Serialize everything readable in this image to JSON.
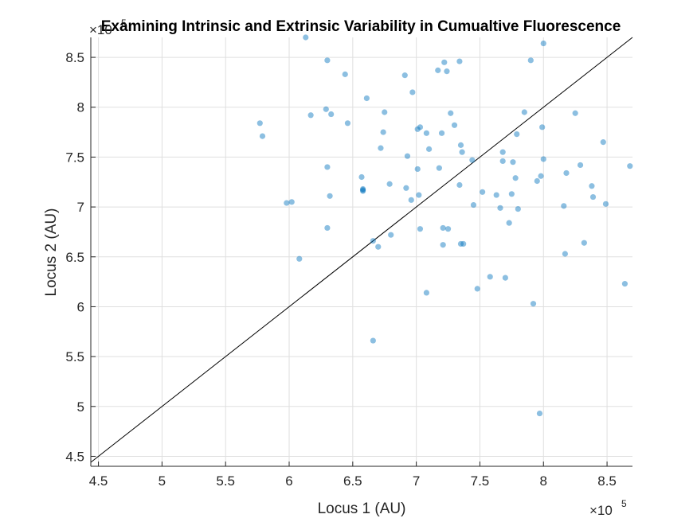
{
  "chart_data": {
    "type": "scatter",
    "title": "Examining Intrinsic and Extrinsic Variability in Cumualtive Fluorescence",
    "xlabel": "Locus 1 (AU)",
    "ylabel": "Locus 2 (AU)",
    "x_exponent_label": "×10",
    "x_exponent_power": "5",
    "y_exponent_label": "×10",
    "y_exponent_power": "5",
    "xlim": [
      4.44,
      8.7
    ],
    "ylim": [
      4.4,
      8.7
    ],
    "scale_factor": 100000,
    "x_ticks": [
      "4.5",
      "5",
      "5.5",
      "6",
      "6.5",
      "7",
      "7.5",
      "8",
      "8.5"
    ],
    "x_tick_values": [
      4.5,
      5,
      5.5,
      6,
      6.5,
      7,
      7.5,
      8,
      8.5
    ],
    "y_ticks": [
      "4.5",
      "5",
      "5.5",
      "6",
      "6.5",
      "7",
      "7.5",
      "8",
      "8.5"
    ],
    "y_tick_values": [
      4.5,
      5,
      5.5,
      6,
      6.5,
      7,
      7.5,
      8,
      8.5
    ],
    "grid": true,
    "reference_line": "y = x",
    "point_color": "#0072BD",
    "points": [
      [
        6.13,
        8.7
      ],
      [
        6.3,
        8.47
      ],
      [
        6.44,
        8.33
      ],
      [
        6.91,
        8.32
      ],
      [
        7.22,
        8.45
      ],
      [
        7.34,
        8.46
      ],
      [
        7.9,
        8.47
      ],
      [
        8.0,
        8.64
      ],
      [
        7.17,
        8.37
      ],
      [
        7.24,
        8.36
      ],
      [
        6.97,
        8.15
      ],
      [
        6.61,
        8.09
      ],
      [
        6.29,
        7.98
      ],
      [
        6.33,
        7.93
      ],
      [
        6.17,
        7.92
      ],
      [
        6.75,
        7.95
      ],
      [
        7.27,
        7.94
      ],
      [
        7.85,
        7.95
      ],
      [
        8.25,
        7.94
      ],
      [
        5.77,
        7.84
      ],
      [
        5.79,
        7.71
      ],
      [
        6.46,
        7.84
      ],
      [
        7.3,
        7.82
      ],
      [
        7.01,
        7.78
      ],
      [
        7.03,
        7.8
      ],
      [
        6.74,
        7.75
      ],
      [
        7.08,
        7.74
      ],
      [
        7.2,
        7.74
      ],
      [
        7.79,
        7.73
      ],
      [
        7.99,
        7.8
      ],
      [
        7.35,
        7.62
      ],
      [
        7.36,
        7.55
      ],
      [
        6.72,
        7.59
      ],
      [
        7.1,
        7.58
      ],
      [
        7.68,
        7.55
      ],
      [
        8.47,
        7.65
      ],
      [
        6.93,
        7.51
      ],
      [
        7.44,
        7.47
      ],
      [
        7.68,
        7.46
      ],
      [
        7.76,
        7.45
      ],
      [
        8.0,
        7.48
      ],
      [
        6.3,
        7.4
      ],
      [
        7.01,
        7.38
      ],
      [
        7.18,
        7.39
      ],
      [
        7.78,
        7.29
      ],
      [
        8.29,
        7.42
      ],
      [
        8.18,
        7.34
      ],
      [
        7.98,
        7.31
      ],
      [
        7.95,
        7.26
      ],
      [
        8.68,
        7.41
      ],
      [
        6.57,
        7.3
      ],
      [
        6.58,
        7.18
      ],
      [
        6.58,
        7.17
      ],
      [
        6.58,
        7.16
      ],
      [
        6.79,
        7.23
      ],
      [
        6.92,
        7.19
      ],
      [
        7.34,
        7.22
      ],
      [
        7.52,
        7.15
      ],
      [
        7.63,
        7.12
      ],
      [
        7.75,
        7.13
      ],
      [
        8.38,
        7.21
      ],
      [
        8.39,
        7.1
      ],
      [
        6.32,
        7.11
      ],
      [
        7.02,
        7.12
      ],
      [
        6.96,
        7.07
      ],
      [
        5.98,
        7.04
      ],
      [
        6.02,
        7.05
      ],
      [
        7.45,
        7.02
      ],
      [
        7.66,
        6.99
      ],
      [
        7.8,
        6.98
      ],
      [
        8.16,
        7.01
      ],
      [
        8.49,
        7.03
      ],
      [
        6.3,
        6.79
      ],
      [
        7.03,
        6.78
      ],
      [
        7.21,
        6.79
      ],
      [
        7.25,
        6.78
      ],
      [
        7.73,
        6.84
      ],
      [
        6.8,
        6.72
      ],
      [
        6.66,
        6.66
      ],
      [
        6.7,
        6.6
      ],
      [
        7.21,
        6.62
      ],
      [
        7.35,
        6.63
      ],
      [
        7.37,
        6.63
      ],
      [
        8.32,
        6.64
      ],
      [
        8.17,
        6.53
      ],
      [
        6.08,
        6.48
      ],
      [
        7.58,
        6.3
      ],
      [
        7.7,
        6.29
      ],
      [
        7.48,
        6.18
      ],
      [
        7.08,
        6.14
      ],
      [
        7.92,
        6.03
      ],
      [
        8.64,
        6.23
      ],
      [
        6.66,
        5.66
      ],
      [
        7.97,
        4.93
      ]
    ]
  }
}
